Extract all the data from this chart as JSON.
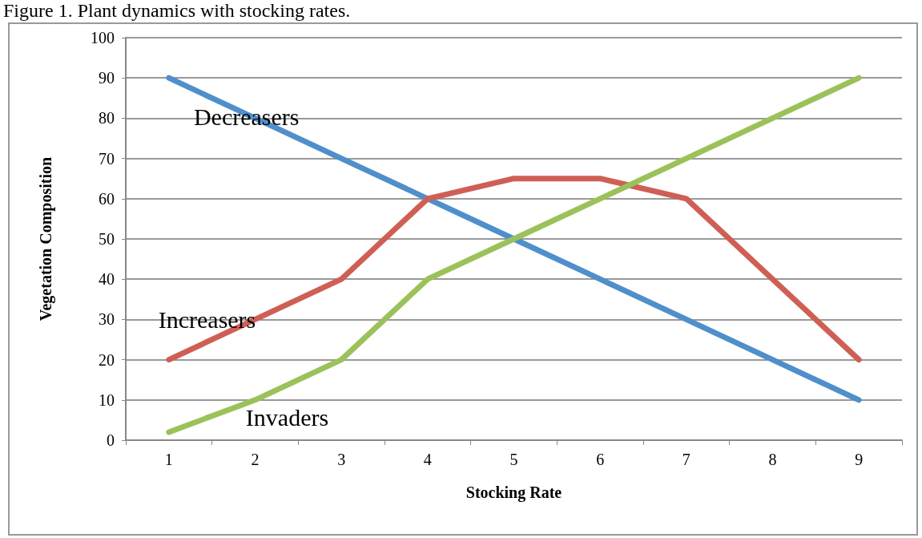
{
  "chart_data": {
    "type": "line",
    "title": "Figure 1. Plant dynamics with stocking rates.",
    "xlabel": "Stocking Rate",
    "ylabel": "Vegetation Composition",
    "categories": [
      "1",
      "2",
      "3",
      "4",
      "5",
      "6",
      "7",
      "8",
      "9"
    ],
    "series": [
      {
        "name": "Decreasers",
        "color": "#4f8fcb",
        "values": [
          90,
          80,
          70,
          60,
          50,
          40,
          30,
          20,
          10
        ]
      },
      {
        "name": "Increasers",
        "color": "#cf5f55",
        "values": [
          20,
          30,
          40,
          60,
          65,
          65,
          60,
          40,
          20
        ]
      },
      {
        "name": "Invaders",
        "color": "#9bc25a",
        "values": [
          2,
          10,
          20,
          40,
          50,
          60,
          70,
          80,
          90
        ]
      }
    ],
    "ylim": [
      0,
      100
    ],
    "yticks": [
      0,
      10,
      20,
      30,
      40,
      50,
      60,
      70,
      80,
      90,
      100
    ],
    "grid": "y",
    "legend": false,
    "marker": "none",
    "line_style": "solid"
  }
}
